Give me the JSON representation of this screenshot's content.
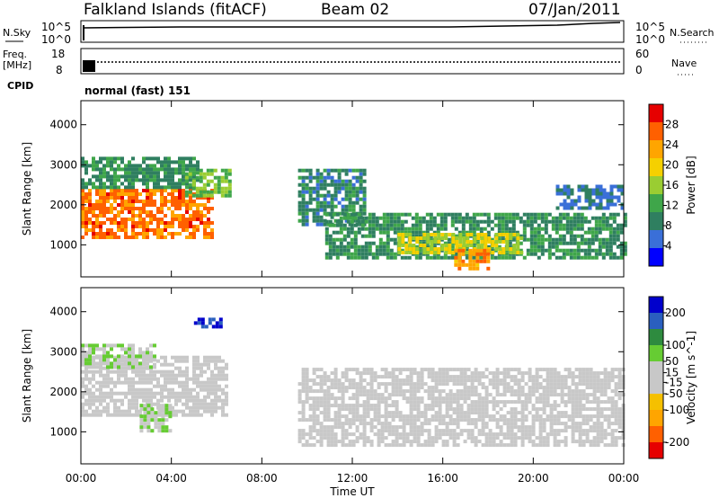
{
  "header": {
    "station": "Falkland Islands (fitACF)",
    "beam": "Beam 02",
    "date": "07/Jan/2011"
  },
  "top_panels": {
    "nsky_label": "N.Sky",
    "nsearch_label": "N.Search",
    "exp_high": "10^5",
    "exp_low": "10^0",
    "freq_label_1": "Freq.",
    "freq_label_2": "[MHz]",
    "freq_tick_high": "18",
    "freq_tick_low": "8",
    "nave_label": "Nave",
    "nave_tick_high": "60",
    "nave_tick_low": "0",
    "cpid_label": "CPID",
    "cpid_value": "normal (fast) 151"
  },
  "colors": {
    "power_scale": [
      "#0000ff",
      "#3a6fd8",
      "#2f7f60",
      "#3fa64a",
      "#9acd32",
      "#f5d000",
      "#ffa500",
      "#ff6000",
      "#e60000"
    ],
    "velocity_scale": [
      "#e60000",
      "#ff6000",
      "#ffa500",
      "#f5c000",
      "#c8c8c8",
      "#c8c8c8",
      "#66cc33",
      "#2e8b3f",
      "#2a5fbf",
      "#0000cc"
    ],
    "ground_scatter": "#bbbbbb"
  },
  "chart_data": [
    {
      "type": "heatmap",
      "panel": "power",
      "xlabel": "Time UT",
      "ylabel": "Slant Range [km]",
      "xlim": [
        0,
        24
      ],
      "ylim": [
        200,
        4600
      ],
      "x_ticks": [
        "00:00",
        "04:00",
        "08:00",
        "12:00",
        "16:00",
        "20:00",
        "00:00"
      ],
      "y_ticks": [
        "1000",
        "2000",
        "3000",
        "4000"
      ],
      "colorbar_label": "Power [dB]",
      "colorbar_ticks": [
        "4",
        "8",
        "12",
        "16",
        "20",
        "24",
        "28"
      ],
      "colorbar_range": [
        0,
        32
      ],
      "regions": [
        {
          "t0": 0.0,
          "t1": 5.8,
          "r0": 1200,
          "r1": 2400,
          "value": 26
        },
        {
          "t0": 0.0,
          "t1": 5.2,
          "r0": 2400,
          "r1": 3200,
          "value": 10
        },
        {
          "t0": 4.6,
          "t1": 6.6,
          "r0": 2200,
          "r1": 2900,
          "value": 14
        },
        {
          "t0": 9.6,
          "t1": 12.6,
          "r0": 1500,
          "r1": 2900,
          "value": 9
        },
        {
          "t0": 10.8,
          "t1": 24.0,
          "r0": 700,
          "r1": 1800,
          "value": 10
        },
        {
          "t0": 14.0,
          "t1": 19.5,
          "r0": 800,
          "r1": 1300,
          "value": 18
        },
        {
          "t0": 16.5,
          "t1": 18.0,
          "r0": 450,
          "r1": 900,
          "value": 24
        },
        {
          "t0": 21.0,
          "t1": 24.0,
          "r0": 1900,
          "r1": 2500,
          "value": 7
        }
      ]
    },
    {
      "type": "heatmap",
      "panel": "velocity",
      "xlabel": "Time UT",
      "ylabel": "Slant Range [km]",
      "xlim": [
        0,
        24
      ],
      "ylim": [
        200,
        4600
      ],
      "x_ticks": [
        "00:00",
        "04:00",
        "08:00",
        "12:00",
        "16:00",
        "20:00",
        "00:00"
      ],
      "y_ticks": [
        "1000",
        "2000",
        "3000",
        "4000"
      ],
      "colorbar_label": "Velocity [m s^-1]",
      "colorbar_ticks": [
        "200",
        "100",
        "50",
        "15",
        "-15",
        "-50",
        "-100",
        "-200"
      ],
      "colorbar_range": [
        -250,
        250
      ],
      "regions": [
        {
          "t0": 0.0,
          "t1": 6.4,
          "r0": 1400,
          "r1": 2900,
          "value": 0
        },
        {
          "t0": 2.6,
          "t1": 4.0,
          "r0": 1050,
          "r1": 1700,
          "value": 40
        },
        {
          "t0": 0.0,
          "t1": 3.2,
          "r0": 2600,
          "r1": 3200,
          "value": 40
        },
        {
          "t0": 5.0,
          "t1": 6.2,
          "r0": 3650,
          "r1": 3850,
          "value": 220
        },
        {
          "t0": 9.6,
          "t1": 24.0,
          "r0": 700,
          "r1": 2600,
          "value": 0
        }
      ]
    }
  ]
}
